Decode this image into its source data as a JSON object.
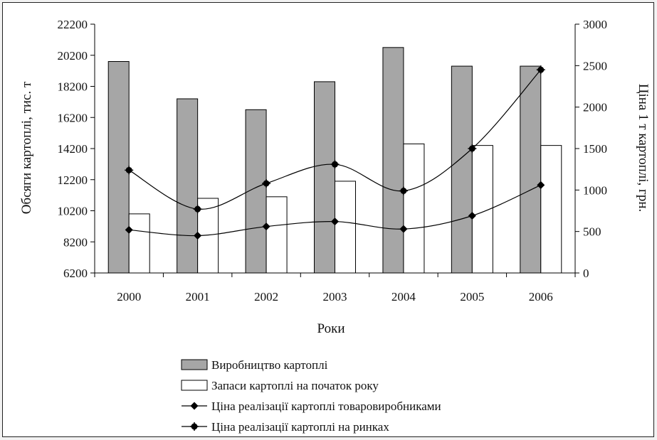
{
  "chart_data": {
    "type": "bar",
    "categories": [
      "2000",
      "2001",
      "2002",
      "2003",
      "2004",
      "2005",
      "2006"
    ],
    "xlabel": "Роки",
    "ylabel_left": "Обсяги картоплі, тис. т",
    "ylabel_right": "Ціна 1 т картоплі, грн.",
    "ylim_left": [
      6200,
      22200
    ],
    "ylim_right": [
      0,
      3000
    ],
    "yticks_left": [
      "22200",
      "20200",
      "18200",
      "16200",
      "14200",
      "12200",
      "10200",
      "8200",
      "6200"
    ],
    "yticks_right": [
      "3000",
      "2500",
      "2000",
      "1500",
      "1000",
      "500",
      "0"
    ],
    "series": [
      {
        "name": "Виробництво картоплі",
        "kind": "bar",
        "axis": "left",
        "color": "#a6a6a6",
        "values": [
          19800,
          17400,
          16700,
          18500,
          20700,
          19500,
          19500
        ]
      },
      {
        "name": "Запаси картоплі на початок року",
        "kind": "bar",
        "axis": "left",
        "color": "#ffffff",
        "values": [
          10000,
          11000,
          11100,
          12100,
          14500,
          14400,
          14400
        ]
      },
      {
        "name": "Ціна реалізації картоплі товаровиробниками",
        "kind": "line",
        "axis": "right",
        "marker": "diamond",
        "color": "#000000",
        "values": [
          520,
          450,
          560,
          620,
          530,
          690,
          1060
        ]
      },
      {
        "name": "Ціна реалізації картоплі на ринках",
        "kind": "line",
        "axis": "right",
        "marker": "circle",
        "color": "#000000",
        "values": [
          1240,
          770,
          1080,
          1310,
          990,
          1500,
          2450
        ]
      }
    ],
    "legend_position": "bottom"
  }
}
